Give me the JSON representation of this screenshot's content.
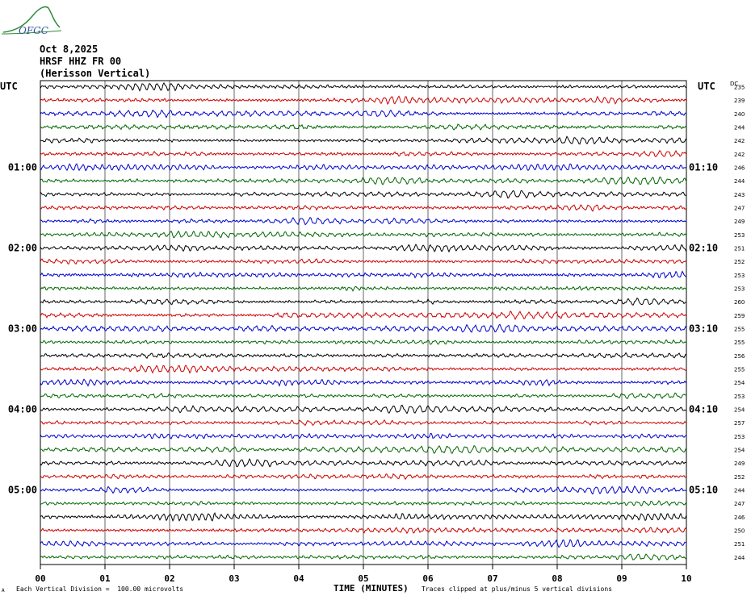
{
  "logo": {
    "text": "OFGC",
    "icon": "ofgc-mountain-logo"
  },
  "header": {
    "date": "Oct 8,2025",
    "station": "HRSF HHZ FR 00",
    "component": "(Herisson Vertical)"
  },
  "utc_left": "UTC",
  "utc_right": "UTC",
  "dc_label": "DC",
  "footer": {
    "left_marker": "A",
    "scale_note": "Each Vertical Division =  100.00 microvolts",
    "clip_note": "Traces clipped at plus/minus 5 vertical divisions"
  },
  "colors": {
    "trace_cycle": [
      "#000000",
      "#cc0000",
      "#0000cc",
      "#006600"
    ],
    "grid": "#000000"
  },
  "chart_data": {
    "type": "line",
    "xlabel": "TIME (MINUTES)",
    "x_ticks": [
      "00",
      "01",
      "02",
      "03",
      "04",
      "05",
      "06",
      "07",
      "08",
      "09",
      "10"
    ],
    "xlim": [
      0,
      10
    ],
    "left_time_labels": [
      {
        "row": 6,
        "label": "01:00"
      },
      {
        "row": 12,
        "label": "02:00"
      },
      {
        "row": 18,
        "label": "03:00"
      },
      {
        "row": 24,
        "label": "04:00"
      },
      {
        "row": 30,
        "label": "05:00"
      }
    ],
    "right_time_labels": [
      {
        "row": 6,
        "label": "01:10"
      },
      {
        "row": 12,
        "label": "02:10"
      },
      {
        "row": 18,
        "label": "03:10"
      },
      {
        "row": 24,
        "label": "04:10"
      },
      {
        "row": 30,
        "label": "05:10"
      }
    ],
    "dc_offsets": [
      235,
      239,
      240,
      244,
      242,
      242,
      246,
      244,
      243,
      247,
      249,
      253,
      251,
      252,
      253,
      253,
      260,
      259,
      255,
      255,
      256,
      255,
      254,
      253,
      254,
      257,
      253,
      254,
      249,
      252,
      244,
      247,
      246,
      250,
      251,
      244
    ]
  }
}
